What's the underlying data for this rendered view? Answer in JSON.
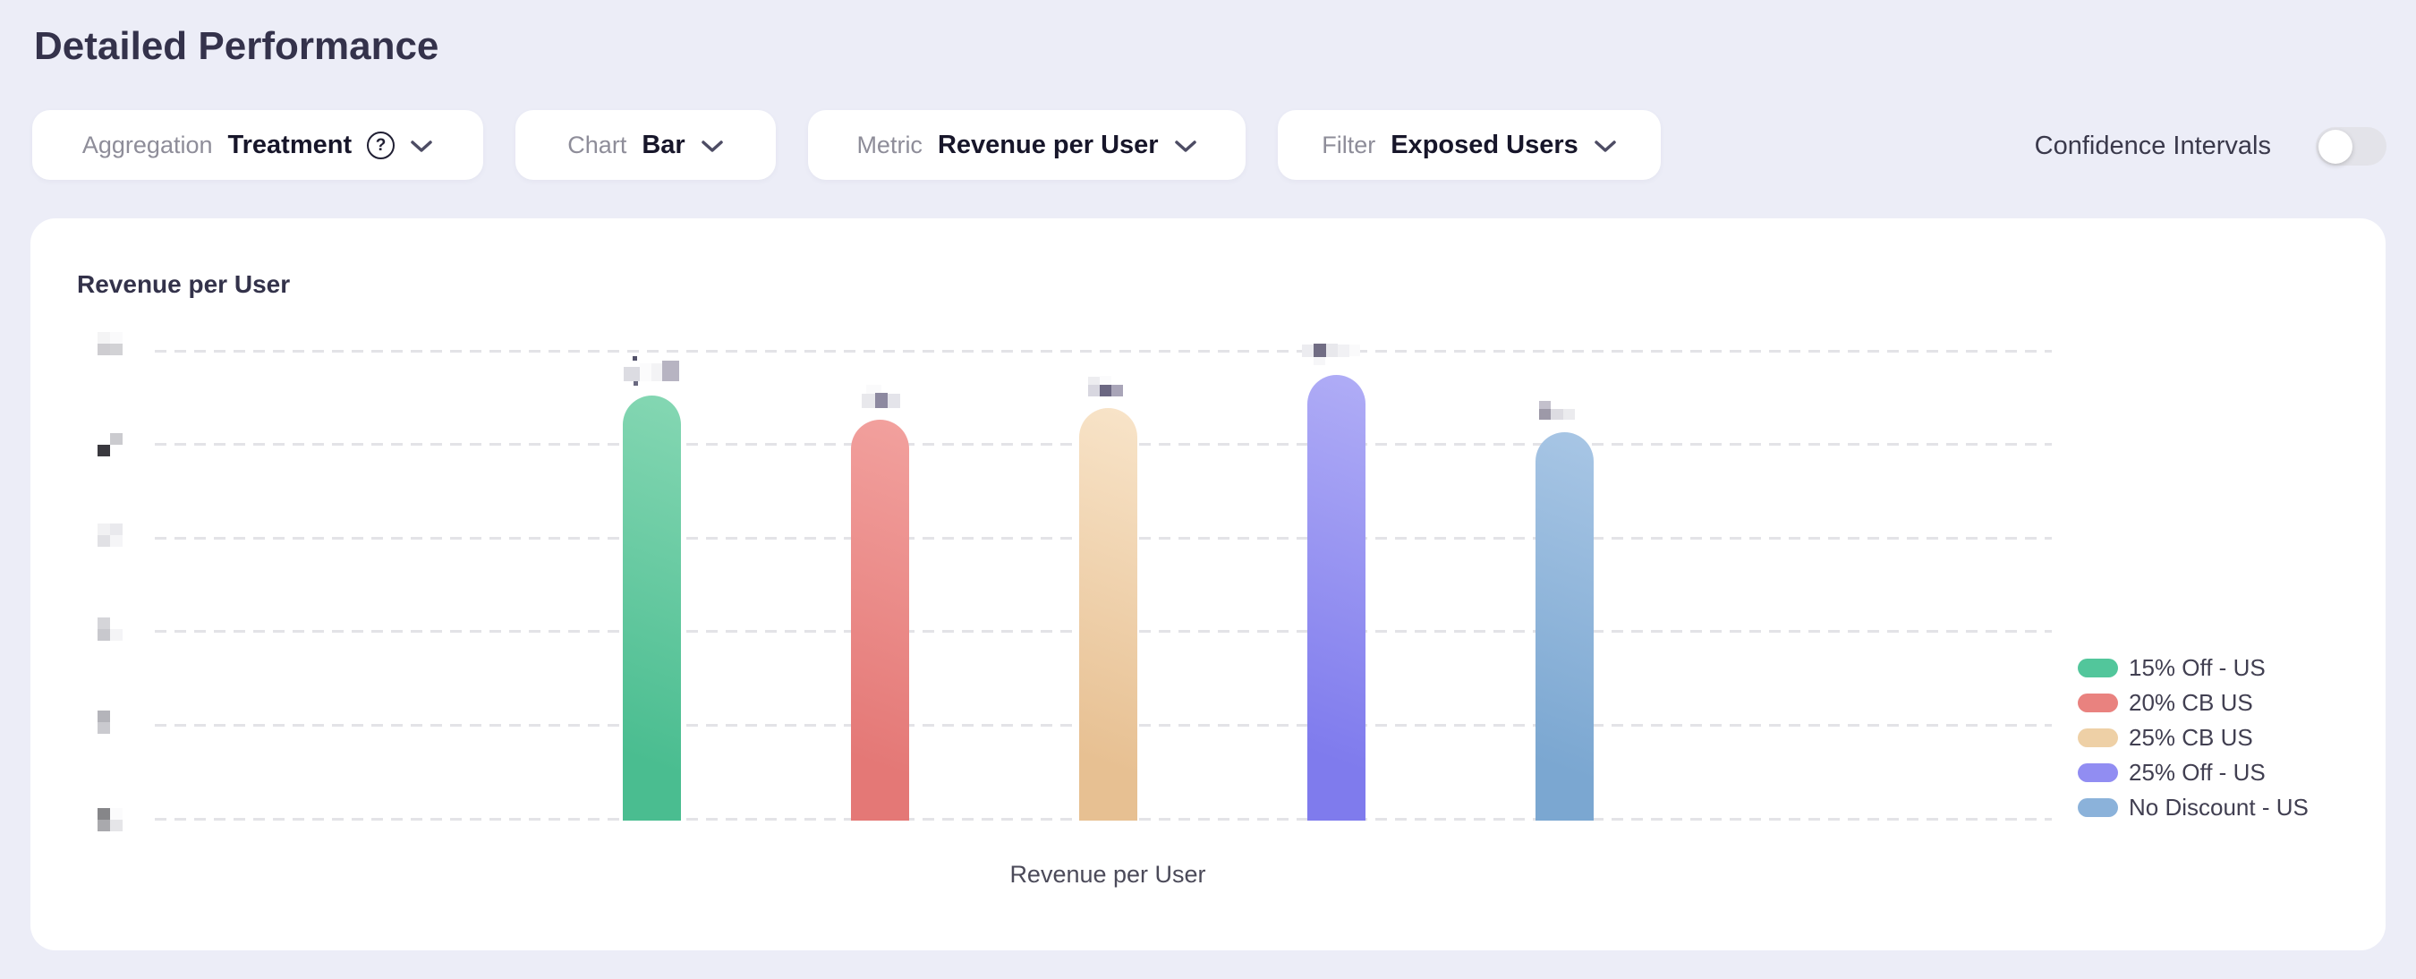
{
  "page": {
    "title": "Detailed Performance",
    "background_color": "#ECEDF7"
  },
  "controls": {
    "aggregation": {
      "label": "Aggregation",
      "value": "Treatment",
      "has_help_icon": true
    },
    "chart": {
      "label": "Chart",
      "value": "Bar"
    },
    "metric": {
      "label": "Metric",
      "value": "Revenue per User"
    },
    "filter": {
      "label": "Filter",
      "value": "Exposed Users"
    },
    "help_icon_glyph": "?"
  },
  "confidence": {
    "label": "Confidence Intervals",
    "state": "off"
  },
  "card": {
    "title": "Revenue per User"
  },
  "chart_data": {
    "type": "bar",
    "title": "Revenue per User",
    "xlabel": "Revenue per User",
    "ylabel": "",
    "categories": [
      "15% Off - US",
      "20% CB US",
      "25% CB US",
      "25% Off - US",
      "No Discount - US"
    ],
    "values_note": "y-axis tick labels and per-bar value labels are pixelated/redacted in the screenshot; numeric values are not readable. relative_heights are bar heights as a fraction of the distance from the bottom gridline to the top gridline.",
    "relative_heights": [
      0.904,
      0.853,
      0.878,
      0.948,
      0.826
    ],
    "bar_gradients": [
      [
        "#85D7B3",
        "#4ABD90"
      ],
      [
        "#F2A19E",
        "#E47876"
      ],
      [
        "#F8E4C9",
        "#E7C092"
      ],
      [
        "#B0ADF6",
        "#7F7BED"
      ],
      [
        "#A8C6E5",
        "#7BA7D1"
      ]
    ],
    "legend_colors": [
      "#52C69B",
      "#E9827F",
      "#EED0A6",
      "#918DF2",
      "#8BB2DA"
    ],
    "legend_position": "right",
    "y_axis": {
      "gridline_count": 6,
      "tick_labels_redacted": true,
      "grid_style": "dashed-horizontal",
      "gridline_color": "#E3E3E7"
    },
    "value_labels_redacted": true
  },
  "redactions": {
    "note": "gray pixelated blocks where numeric labels are blurred in the screenshot; cells are [dx,dy,w,h,color]",
    "y_tick_blocks": [
      [
        [
          0,
          -21,
          14,
          13,
          "#F4F4F5"
        ],
        [
          14,
          -21,
          14,
          13,
          "#FAFAFB"
        ],
        [
          0,
          -8,
          14,
          13,
          "#CECDD1"
        ],
        [
          14,
          -8,
          14,
          13,
          "#D2D2D5"
        ]
      ],
      [
        [
          14,
          -13,
          14,
          13,
          "#CBCBCF"
        ],
        [
          0,
          0,
          14,
          13,
          "#3A393F"
        ]
      ],
      [
        [
          0,
          -16,
          14,
          13,
          "#F1F1F3"
        ],
        [
          14,
          -16,
          14,
          13,
          "#E9E9ED"
        ],
        [
          0,
          -3,
          14,
          13,
          "#E1E1E5"
        ],
        [
          14,
          -3,
          14,
          13,
          "#F5F5F7"
        ]
      ],
      [
        [
          0,
          -16,
          14,
          13,
          "#D5D5D9"
        ],
        [
          0,
          -3,
          14,
          13,
          "#C8C8CD"
        ],
        [
          14,
          -3,
          14,
          13,
          "#F4F4F6"
        ]
      ],
      [
        [
          0,
          -16,
          14,
          13,
          "#B4B4BA"
        ],
        [
          0,
          -3,
          14,
          13,
          "#CACACF"
        ]
      ],
      [
        [
          0,
          -12,
          14,
          13,
          "#868689"
        ],
        [
          14,
          -12,
          14,
          13,
          "#FBFBFC"
        ],
        [
          0,
          1,
          14,
          13,
          "#A9A9AD"
        ],
        [
          14,
          1,
          14,
          13,
          "#E5E5E8"
        ]
      ]
    ],
    "value_label_blocks": [
      [
        [
          697,
          410,
          18,
          16,
          "#DCDCE2"
        ],
        [
          715,
          406,
          13,
          20,
          "#FBFBFC"
        ],
        [
          728,
          406,
          12,
          20,
          "#F3F3F5"
        ],
        [
          740,
          403,
          19,
          23,
          "#B7B4C2"
        ],
        [
          707,
          398,
          5,
          5,
          "#53526A"
        ],
        [
          708,
          426,
          5,
          5,
          "#6A6980"
        ]
      ],
      [
        [
          968,
          430,
          17,
          10,
          "#FAFAFB"
        ],
        [
          963,
          440,
          15,
          16,
          "#E8E8EC"
        ],
        [
          978,
          439,
          14,
          17,
          "#8D89A0"
        ],
        [
          992,
          440,
          14,
          16,
          "#E4E4EA"
        ]
      ],
      [
        [
          1216,
          421,
          13,
          9,
          "#EDEDF0"
        ],
        [
          1229,
          420,
          13,
          10,
          "#FBFBFC"
        ],
        [
          1216,
          430,
          13,
          13,
          "#D8D7E0"
        ],
        [
          1229,
          430,
          13,
          13,
          "#6B6782"
        ],
        [
          1242,
          430,
          13,
          13,
          "#A9A5B8"
        ]
      ],
      [
        [
          1455,
          385,
          13,
          14,
          "#ECECF0"
        ],
        [
          1468,
          384,
          14,
          15,
          "#716D84"
        ],
        [
          1482,
          384,
          13,
          15,
          "#E8E8EC"
        ],
        [
          1495,
          385,
          13,
          14,
          "#F1F1F4"
        ],
        [
          1508,
          385,
          12,
          13,
          "#FAFAFB"
        ],
        [
          1468,
          399,
          13,
          9,
          "#F6F6F8"
        ]
      ],
      [
        [
          1720,
          448,
          13,
          9,
          "#C3C0CC"
        ],
        [
          1720,
          457,
          13,
          12,
          "#9D99A8"
        ],
        [
          1733,
          457,
          14,
          12,
          "#DDDCE2"
        ],
        [
          1747,
          457,
          13,
          12,
          "#EBEBEE"
        ]
      ]
    ]
  }
}
